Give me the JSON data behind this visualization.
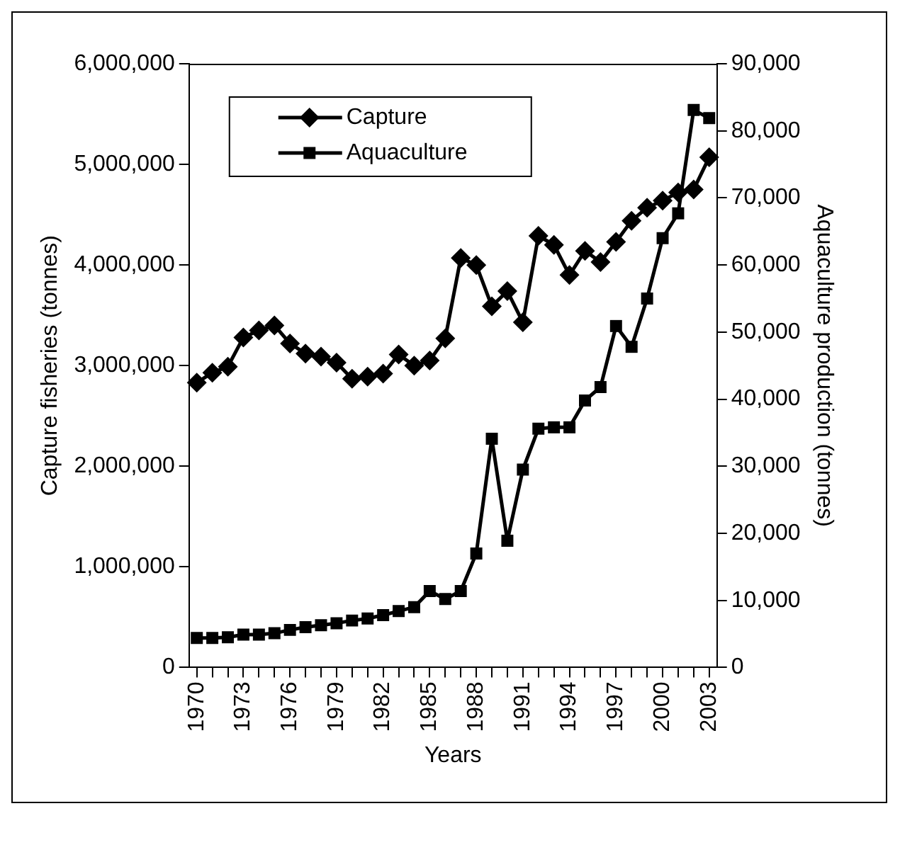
{
  "chart_data": {
    "type": "line",
    "xlabel": "Years",
    "ylabel": "Capture fisheries (tonnes)",
    "y2label": "Aquaculture production (tonnes)",
    "categories": [
      "1970",
      null,
      null,
      "1973",
      null,
      null,
      "1976",
      null,
      null,
      "1979",
      null,
      null,
      "1982",
      null,
      null,
      "1985",
      null,
      null,
      "1988",
      null,
      null,
      "1991",
      null,
      null,
      "1994",
      null,
      null,
      "1997",
      null,
      null,
      "2000",
      null,
      null,
      "2003"
    ],
    "series": [
      {
        "name": "Capture",
        "color": "#000000",
        "marker": "diamond",
        "values": [
          2830000,
          2930000,
          2990000,
          3280000,
          3350000,
          3400000,
          3220000,
          3120000,
          3090000,
          3030000,
          2870000,
          2890000,
          2920000,
          3110000,
          3000000,
          3050000,
          3270000,
          4070000,
          4000000,
          3590000,
          3740000,
          3430000,
          4290000,
          4200000,
          3900000,
          4140000,
          4030000,
          4230000,
          4440000,
          4570000,
          4640000,
          4720000,
          4750000,
          5070000
        ]
      },
      {
        "name": "Aquaculture",
        "color": "#000000",
        "marker": "square",
        "axis": "y2",
        "values": [
          4400,
          4400,
          4500,
          4900,
          4900,
          5100,
          5600,
          6000,
          6300,
          6600,
          7000,
          7300,
          7800,
          8400,
          9000,
          11400,
          10200,
          11400,
          17000,
          34100,
          18900,
          29500,
          35600,
          35800,
          35800,
          39800,
          41800,
          50900,
          47800,
          55000,
          64000,
          67700,
          83100,
          81900
        ]
      }
    ],
    "ylim": [
      0,
      6000000
    ],
    "yticks": [
      0,
      {
        "value": 1000000,
        "label": "1,000,000"
      },
      {
        "value": 2000000,
        "label": "2,000,000"
      },
      {
        "value": 3000000,
        "label": "3,000,000"
      },
      {
        "value": 4000000,
        "label": "4,000,000"
      },
      {
        "value": 5000000,
        "label": "5,000,000"
      },
      {
        "value": 6000000,
        "label": "6,000,000"
      }
    ],
    "y2lim": [
      0,
      90000
    ],
    "y2ticks": [
      0,
      {
        "value": 10000,
        "label": "10,000"
      },
      {
        "value": 20000,
        "label": "20,000"
      },
      {
        "value": 30000,
        "label": "30,000"
      },
      {
        "value": 40000,
        "label": "40,000"
      },
      {
        "value": 50000,
        "label": "50,000"
      },
      {
        "value": 60000,
        "label": "60,000"
      },
      {
        "value": 70000,
        "label": "70,000"
      },
      {
        "value": 80000,
        "label": "80,000"
      },
      {
        "value": 90000,
        "label": "90,000"
      }
    ],
    "grid": false,
    "legend": "top left",
    "line_style": "solid"
  }
}
